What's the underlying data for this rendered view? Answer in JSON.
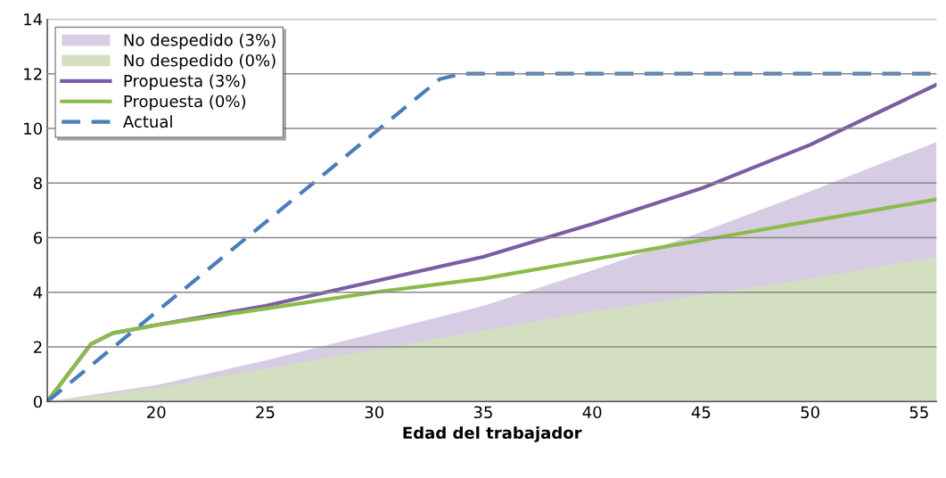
{
  "chart_data": {
    "type": "line",
    "xlabel": "Edad del trabajador",
    "xlim": [
      15,
      55.8
    ],
    "ylim": [
      0,
      14
    ],
    "xticks": [
      20,
      25,
      30,
      35,
      40,
      45,
      50,
      55
    ],
    "yticks": [
      0,
      2,
      4,
      6,
      8,
      10,
      12,
      14
    ],
    "grid": "y",
    "legend": "top left",
    "series": [
      {
        "name": "No despedido (3%)",
        "type": "area",
        "color": "#d6cde4",
        "x": [
          15,
          20,
          25,
          30,
          35,
          40,
          45,
          50,
          55.8
        ],
        "values": [
          0,
          0.6,
          1.5,
          2.5,
          3.5,
          4.8,
          6.2,
          7.7,
          9.5
        ]
      },
      {
        "name": "No despedido (0%)",
        "type": "area",
        "color": "#d3dfc0",
        "x": [
          15,
          20,
          30,
          40,
          50,
          55.8
        ],
        "values": [
          0,
          0.5,
          1.9,
          3.3,
          4.5,
          5.3
        ]
      },
      {
        "name": "Propuesta (3%)",
        "color": "#7a5ea3",
        "line_style": "solid",
        "x": [
          15,
          17,
          18,
          20,
          25,
          30,
          35,
          40,
          45,
          50,
          55.8
        ],
        "values": [
          0,
          2.1,
          2.5,
          2.8,
          3.5,
          4.4,
          5.3,
          6.5,
          7.8,
          9.4,
          11.6
        ]
      },
      {
        "name": "Propuesta (0%)",
        "color": "#8cbb4c",
        "line_style": "solid",
        "x": [
          15,
          17,
          18,
          20,
          25,
          30,
          35,
          40,
          45,
          50,
          55.8
        ],
        "values": [
          0,
          2.1,
          2.5,
          2.8,
          3.4,
          4.0,
          4.5,
          5.2,
          5.9,
          6.6,
          7.4
        ]
      },
      {
        "name": "Actual",
        "color": "#4a7ebb",
        "line_style": "dashed",
        "x": [
          15,
          33,
          34,
          55.8
        ],
        "values": [
          0,
          11.8,
          12,
          12
        ]
      }
    ]
  }
}
